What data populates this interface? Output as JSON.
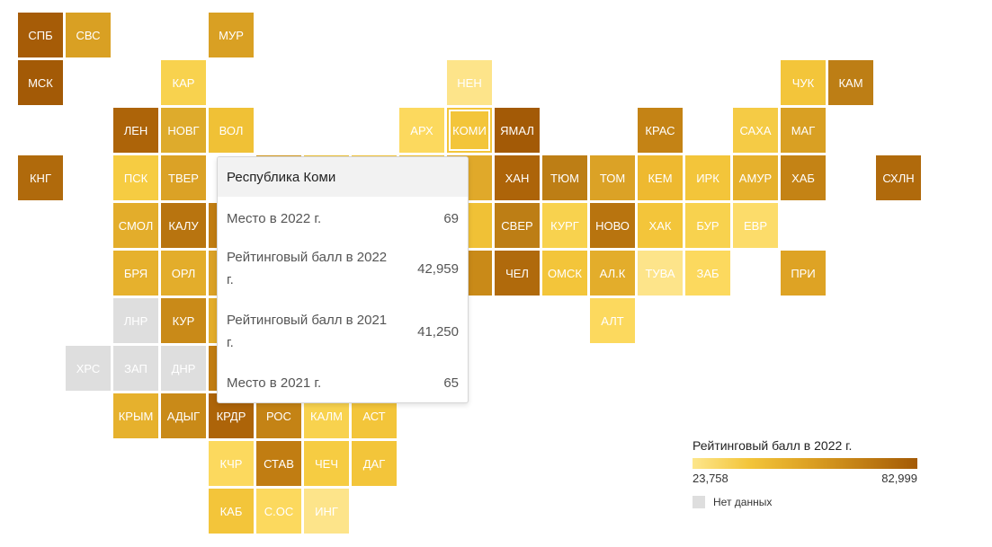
{
  "map": {
    "regions": [
      {
        "label": "СПБ",
        "col": 0,
        "row": 0,
        "color": "#a65c07"
      },
      {
        "label": "СВС",
        "col": 1,
        "row": 0,
        "color": "#d9a023"
      },
      {
        "label": "МУР",
        "col": 4,
        "row": 0,
        "color": "#d9a023"
      },
      {
        "label": "МСК",
        "col": 0,
        "row": 1,
        "color": "#a35a06"
      },
      {
        "label": "КАР",
        "col": 3,
        "row": 1,
        "color": "#f8d24e"
      },
      {
        "label": "НЕН",
        "col": 9,
        "row": 1,
        "color": "#fde48a"
      },
      {
        "label": "ЧУК",
        "col": 16,
        "row": 1,
        "color": "#f3c53a"
      },
      {
        "label": "КАМ",
        "col": 17,
        "row": 1,
        "color": "#bd7e15"
      },
      {
        "label": "ЛЕН",
        "col": 2,
        "row": 2,
        "color": "#ad6409"
      },
      {
        "label": "НОВГ",
        "col": 3,
        "row": 2,
        "color": "#deab2c"
      },
      {
        "label": "ВОЛ",
        "col": 4,
        "row": 2,
        "color": "#f0c136"
      },
      {
        "label": "АРХ",
        "col": 8,
        "row": 2,
        "color": "#fcd95e"
      },
      {
        "label": "КОМИ",
        "col": 9,
        "row": 2,
        "color": "#f3c53a",
        "selected": true
      },
      {
        "label": "ЯМАЛ",
        "col": 10,
        "row": 2,
        "color": "#a35a06"
      },
      {
        "label": "КРАС",
        "col": 13,
        "row": 2,
        "color": "#c48315"
      },
      {
        "label": "САХА",
        "col": 15,
        "row": 2,
        "color": "#f5cb45"
      },
      {
        "label": "МАГ",
        "col": 16,
        "row": 2,
        "color": "#d9a023"
      },
      {
        "label": "КНГ",
        "col": 0,
        "row": 3,
        "color": "#b06a0c"
      },
      {
        "label": "ПСК",
        "col": 2,
        "row": 3,
        "color": "#f6cc42"
      },
      {
        "label": "ТВЕР",
        "col": 3,
        "row": 3,
        "color": "#dba226"
      },
      {
        "label": "",
        "col": 5,
        "row": 3,
        "color": "#d4991f"
      },
      {
        "label": "",
        "col": 6,
        "row": 3,
        "color": "#eec035"
      },
      {
        "label": "",
        "col": 7,
        "row": 3,
        "color": "#f3c53a"
      },
      {
        "label": "",
        "col": 8,
        "row": 3,
        "color": "#f0c136"
      },
      {
        "label": "",
        "col": 9,
        "row": 3,
        "color": "#e0a92a"
      },
      {
        "label": "ХАН",
        "col": 10,
        "row": 3,
        "color": "#ad6409"
      },
      {
        "label": "ТЮМ",
        "col": 11,
        "row": 3,
        "color": "#bd7e15"
      },
      {
        "label": "ТОМ",
        "col": 12,
        "row": 3,
        "color": "#dba226"
      },
      {
        "label": "КЕМ",
        "col": 13,
        "row": 3,
        "color": "#eeb930"
      },
      {
        "label": "ИРК",
        "col": 14,
        "row": 3,
        "color": "#f3c53a"
      },
      {
        "label": "АМУР",
        "col": 15,
        "row": 3,
        "color": "#e6b12d"
      },
      {
        "label": "ХАБ",
        "col": 16,
        "row": 3,
        "color": "#c48315"
      },
      {
        "label": "СХЛН",
        "col": 18,
        "row": 3,
        "color": "#b06a0c"
      },
      {
        "label": "СМОЛ",
        "col": 2,
        "row": 4,
        "color": "#e3ad2b"
      },
      {
        "label": "КАЛУ",
        "col": 3,
        "row": 4,
        "color": "#b8740f"
      },
      {
        "label": "",
        "col": 4,
        "row": 4,
        "color": "#c17d12"
      },
      {
        "label": "",
        "col": 9,
        "row": 4,
        "color": "#f0c136"
      },
      {
        "label": "СВЕР",
        "col": 10,
        "row": 4,
        "color": "#bd7e15"
      },
      {
        "label": "КУРГ",
        "col": 11,
        "row": 4,
        "color": "#f8d24e"
      },
      {
        "label": "НОВО",
        "col": 12,
        "row": 4,
        "color": "#b8740f"
      },
      {
        "label": "ХАК",
        "col": 13,
        "row": 4,
        "color": "#f3c53a"
      },
      {
        "label": "БУР",
        "col": 14,
        "row": 4,
        "color": "#f8d24e"
      },
      {
        "label": "ЕВР",
        "col": 15,
        "row": 4,
        "color": "#fcdc6a"
      },
      {
        "label": "БРЯ",
        "col": 2,
        "row": 5,
        "color": "#e6b12d"
      },
      {
        "label": "ОРЛ",
        "col": 3,
        "row": 5,
        "color": "#e3ad2b"
      },
      {
        "label": "",
        "col": 4,
        "row": 5,
        "color": "#dba226"
      },
      {
        "label": "",
        "col": 9,
        "row": 5,
        "color": "#c98a18"
      },
      {
        "label": "ЧЕЛ",
        "col": 10,
        "row": 5,
        "color": "#b06a0c"
      },
      {
        "label": "ОМСК",
        "col": 11,
        "row": 5,
        "color": "#f3c53a"
      },
      {
        "label": "АЛ.К",
        "col": 12,
        "row": 5,
        "color": "#e3ad2b"
      },
      {
        "label": "ТУВА",
        "col": 13,
        "row": 5,
        "color": "#fde48a"
      },
      {
        "label": "ЗАБ",
        "col": 14,
        "row": 5,
        "color": "#fcd95e"
      },
      {
        "label": "ПРИ",
        "col": 16,
        "row": 5,
        "color": "#dea324"
      },
      {
        "label": "ЛНР",
        "col": 2,
        "row": 6,
        "color": "#dedede"
      },
      {
        "label": "КУР",
        "col": 3,
        "row": 6,
        "color": "#c98a18"
      },
      {
        "label": "",
        "col": 4,
        "row": 6,
        "color": "#e3ad2b"
      },
      {
        "label": "АЛТ",
        "col": 12,
        "row": 6,
        "color": "#fcd95e"
      },
      {
        "label": "ХРС",
        "col": 1,
        "row": 7,
        "color": "#dedede"
      },
      {
        "label": "ЗАП",
        "col": 2,
        "row": 7,
        "color": "#dedede"
      },
      {
        "label": "ДНР",
        "col": 3,
        "row": 7,
        "color": "#dedede"
      },
      {
        "label": "",
        "col": 4,
        "row": 7,
        "color": "#c17d12"
      },
      {
        "label": "КРЫМ",
        "col": 2,
        "row": 8,
        "color": "#e6b12d"
      },
      {
        "label": "АДЫГ",
        "col": 3,
        "row": 8,
        "color": "#c98a18"
      },
      {
        "label": "КРДР",
        "col": 4,
        "row": 8,
        "color": "#ad6409"
      },
      {
        "label": "РОС",
        "col": 5,
        "row": 8,
        "color": "#c48315"
      },
      {
        "label": "КАЛМ",
        "col": 6,
        "row": 8,
        "color": "#f8d24e"
      },
      {
        "label": "АСТ",
        "col": 7,
        "row": 8,
        "color": "#f3c53a"
      },
      {
        "label": "КЧР",
        "col": 4,
        "row": 9,
        "color": "#fcd95e"
      },
      {
        "label": "СТАВ",
        "col": 5,
        "row": 9,
        "color": "#c17d12"
      },
      {
        "label": "ЧЕЧ",
        "col": 6,
        "row": 9,
        "color": "#f6cc42"
      },
      {
        "label": "ДАГ",
        "col": 7,
        "row": 9,
        "color": "#f3c53a"
      },
      {
        "label": "КАБ",
        "col": 4,
        "row": 10,
        "color": "#f3c53a"
      },
      {
        "label": "С.ОС",
        "col": 5,
        "row": 10,
        "color": "#fcd95e"
      },
      {
        "label": "ИНГ",
        "col": 6,
        "row": 10,
        "color": "#fde48a"
      }
    ]
  },
  "tooltip": {
    "title": "Республика Коми",
    "rows": [
      {
        "label": "Место в 2022 г.",
        "value": "69"
      },
      {
        "label": "Рейтинговый балл в 2022 г.",
        "value": "42,959"
      },
      {
        "label": "Рейтинговый балл в 2021 г.",
        "value": "41,250"
      },
      {
        "label": "Место в 2021 г.",
        "value": "65"
      }
    ]
  },
  "legend": {
    "title": "Рейтинговый балл в 2022 г.",
    "min": "23,758",
    "max": "82,999",
    "nodata_label": "Нет данных",
    "nodata_color": "#dedede"
  }
}
